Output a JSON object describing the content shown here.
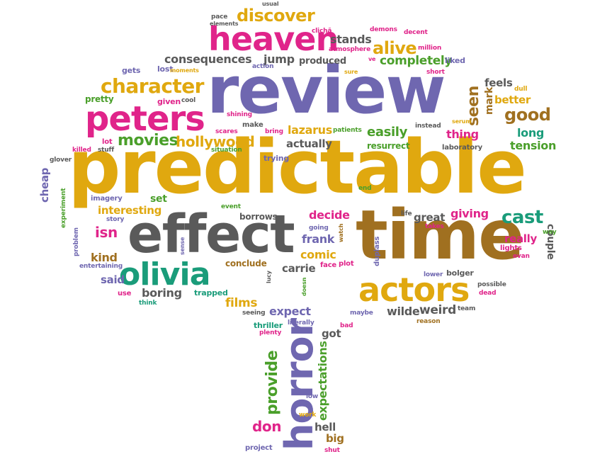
{
  "colors": {
    "purple": "#6F67B0",
    "gold": "#E0A80F",
    "pink": "#E0248A",
    "green": "#4A9F2A",
    "teal": "#1A9C7A",
    "gray": "#5A5A5A",
    "brown": "#A07020",
    "orange": "#E06A16"
  },
  "words": [
    {
      "t": "predictable",
      "c": "gold"
    },
    {
      "t": "review",
      "c": "purple"
    },
    {
      "t": "time",
      "c": "brown"
    },
    {
      "t": "effect",
      "c": "gray"
    },
    {
      "t": "heaven",
      "c": "pink"
    },
    {
      "t": "peters",
      "c": "pink"
    },
    {
      "t": "olivia",
      "c": "teal"
    },
    {
      "t": "actors",
      "c": "gold"
    },
    {
      "t": "horror",
      "c": "purple"
    },
    {
      "t": "character",
      "c": "gold"
    },
    {
      "t": "discover",
      "c": "gold"
    },
    {
      "t": "alive",
      "c": "gold"
    },
    {
      "t": "movies",
      "c": "green"
    },
    {
      "t": "hollywood",
      "c": "gold"
    },
    {
      "t": "cast",
      "c": "teal"
    },
    {
      "t": "good",
      "c": "brown"
    },
    {
      "t": "seen",
      "c": "brown"
    },
    {
      "t": "consequences",
      "c": "gray"
    },
    {
      "t": "completely",
      "c": "green"
    },
    {
      "t": "stands",
      "c": "gray"
    },
    {
      "t": "jump",
      "c": "gray"
    },
    {
      "t": "produced",
      "c": "gray"
    },
    {
      "t": "lazarus",
      "c": "gold"
    },
    {
      "t": "easily",
      "c": "green"
    },
    {
      "t": "thing",
      "c": "pink"
    },
    {
      "t": "long",
      "c": "teal"
    },
    {
      "t": "tension",
      "c": "green"
    },
    {
      "t": "actually",
      "c": "gray"
    },
    {
      "t": "resurrect",
      "c": "green"
    },
    {
      "t": "laboratory",
      "c": "gray"
    },
    {
      "t": "feels",
      "c": "gray"
    },
    {
      "t": "better",
      "c": "gold"
    },
    {
      "t": "mark",
      "c": "brown"
    },
    {
      "t": "interesting",
      "c": "gold"
    },
    {
      "t": "set",
      "c": "green"
    },
    {
      "t": "isn",
      "c": "pink"
    },
    {
      "t": "kind",
      "c": "brown"
    },
    {
      "t": "said",
      "c": "purple"
    },
    {
      "t": "boring",
      "c": "gray"
    },
    {
      "t": "trapped",
      "c": "teal"
    },
    {
      "t": "decide",
      "c": "pink"
    },
    {
      "t": "frank",
      "c": "purple"
    },
    {
      "t": "comic",
      "c": "gold"
    },
    {
      "t": "carrie",
      "c": "gray"
    },
    {
      "t": "conclude",
      "c": "brown"
    },
    {
      "t": "giving",
      "c": "pink"
    },
    {
      "t": "great",
      "c": "gray"
    },
    {
      "t": "really",
      "c": "pink"
    },
    {
      "t": "films",
      "c": "gold"
    },
    {
      "t": "expect",
      "c": "purple"
    },
    {
      "t": "weird",
      "c": "gray"
    },
    {
      "t": "wilde",
      "c": "gray"
    },
    {
      "t": "provide",
      "c": "green"
    },
    {
      "t": "expectations",
      "c": "green"
    },
    {
      "t": "don",
      "c": "pink"
    },
    {
      "t": "hell",
      "c": "gray"
    },
    {
      "t": "got",
      "c": "gray"
    },
    {
      "t": "big",
      "c": "brown"
    },
    {
      "t": "cheap",
      "c": "purple"
    },
    {
      "t": "couple",
      "c": "gray"
    },
    {
      "t": "gets",
      "c": "purple"
    },
    {
      "t": "lost",
      "c": "purple"
    },
    {
      "t": "pretty",
      "c": "green"
    },
    {
      "t": "given",
      "c": "pink"
    },
    {
      "t": "cool",
      "c": "gray"
    },
    {
      "t": "make",
      "c": "gray"
    },
    {
      "t": "shining",
      "c": "pink"
    },
    {
      "t": "scares",
      "c": "pink"
    },
    {
      "t": "bring",
      "c": "pink"
    },
    {
      "t": "patients",
      "c": "green"
    },
    {
      "t": "instead",
      "c": "gray"
    },
    {
      "t": "lot",
      "c": "pink"
    },
    {
      "t": "stuff",
      "c": "gray"
    },
    {
      "t": "killed",
      "c": "pink"
    },
    {
      "t": "situation",
      "c": "green"
    },
    {
      "t": "trying",
      "c": "purple"
    },
    {
      "t": "glover",
      "c": "gray"
    },
    {
      "t": "imagery",
      "c": "purple"
    },
    {
      "t": "experiment",
      "c": "green"
    },
    {
      "t": "story",
      "c": "purple"
    },
    {
      "t": "event",
      "c": "green"
    },
    {
      "t": "borrows",
      "c": "gray"
    },
    {
      "t": "end",
      "c": "green"
    },
    {
      "t": "life",
      "c": "gray"
    },
    {
      "t": "takes",
      "c": "pink"
    },
    {
      "t": "way",
      "c": "green"
    },
    {
      "t": "lights",
      "c": "pink"
    },
    {
      "t": "evan",
      "c": "pink"
    },
    {
      "t": "problem",
      "c": "purple"
    },
    {
      "t": "entertaining",
      "c": "purple"
    },
    {
      "t": "sense",
      "c": "purple"
    },
    {
      "t": "going",
      "c": "purple"
    },
    {
      "t": "watch",
      "c": "brown"
    },
    {
      "t": "face",
      "c": "pink"
    },
    {
      "t": "plot",
      "c": "pink"
    },
    {
      "t": "duplass",
      "c": "purple"
    },
    {
      "t": "lower",
      "c": "purple"
    },
    {
      "t": "bolger",
      "c": "gray"
    },
    {
      "t": "possible",
      "c": "gray"
    },
    {
      "t": "dead",
      "c": "pink"
    },
    {
      "t": "use",
      "c": "pink"
    },
    {
      "t": "think",
      "c": "teal"
    },
    {
      "t": "lucy",
      "c": "gray"
    },
    {
      "t": "doesn",
      "c": "green"
    },
    {
      "t": "seeing",
      "c": "gray"
    },
    {
      "t": "maybe",
      "c": "purple"
    },
    {
      "t": "team",
      "c": "gray"
    },
    {
      "t": "reason",
      "c": "brown"
    },
    {
      "t": "thriller",
      "c": "teal"
    },
    {
      "t": "literally",
      "c": "purple"
    },
    {
      "t": "plenty",
      "c": "pink"
    },
    {
      "t": "bad",
      "c": "pink"
    },
    {
      "t": "low",
      "c": "purple"
    },
    {
      "t": "work",
      "c": "gold"
    },
    {
      "t": "project",
      "c": "purple"
    },
    {
      "t": "shut",
      "c": "pink"
    },
    {
      "t": "pace",
      "c": "gray"
    },
    {
      "t": "elements",
      "c": "gray"
    },
    {
      "t": "usual",
      "c": "gray"
    },
    {
      "t": "clichã",
      "c": "pink"
    },
    {
      "t": "atmosphere",
      "c": "pink"
    },
    {
      "t": "demons",
      "c": "pink"
    },
    {
      "t": "decent",
      "c": "pink"
    },
    {
      "t": "million",
      "c": "pink"
    },
    {
      "t": "ve",
      "c": "pink"
    },
    {
      "t": "liked",
      "c": "purple"
    },
    {
      "t": "moments",
      "c": "gold"
    },
    {
      "t": "action",
      "c": "purple"
    },
    {
      "t": "sure",
      "c": "gold"
    },
    {
      "t": "short",
      "c": "pink"
    },
    {
      "t": "serum",
      "c": "gold"
    },
    {
      "t": "dull",
      "c": "gold"
    }
  ]
}
